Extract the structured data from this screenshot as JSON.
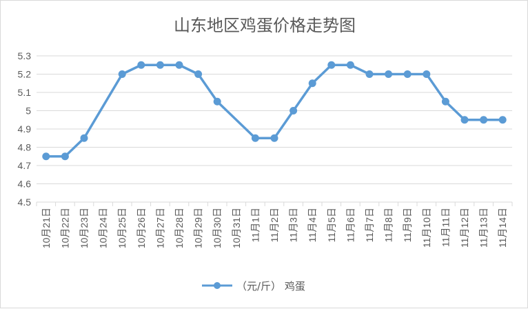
{
  "chart_data": {
    "type": "line",
    "title": "山东地区鸡蛋价格走势图",
    "xlabel": "",
    "ylabel": "",
    "categories": [
      "10月21日",
      "10月22日",
      "10月23日",
      "10月24日",
      "10月25日",
      "10月26日",
      "10月27日",
      "10月28日",
      "10月29日",
      "10月30日",
      "10月31日",
      "11月1日",
      "11月2日",
      "11月3日",
      "11月4日",
      "11月5日",
      "11月6日",
      "11月7日",
      "11月8日",
      "11月9日",
      "11月10日",
      "11月11日",
      "11月12日",
      "11月13日",
      "11月14日"
    ],
    "series": [
      {
        "name": "（元/斤） 鸡蛋",
        "color": "#5b9bd5",
        "values": [
          4.75,
          4.75,
          4.85,
          null,
          5.2,
          5.25,
          5.25,
          5.25,
          5.2,
          5.05,
          null,
          4.85,
          4.85,
          5.0,
          5.15,
          5.25,
          5.25,
          5.2,
          5.2,
          5.2,
          5.2,
          5.05,
          4.95,
          4.95,
          4.95
        ]
      }
    ],
    "ylim": [
      4.5,
      5.3
    ],
    "yticks": [
      "4.5",
      "4.6",
      "4.7",
      "4.8",
      "4.9",
      "5",
      "5.1",
      "5.2",
      "5.3"
    ],
    "grid": true,
    "legend": "bottom",
    "gap_handling": "connect"
  }
}
